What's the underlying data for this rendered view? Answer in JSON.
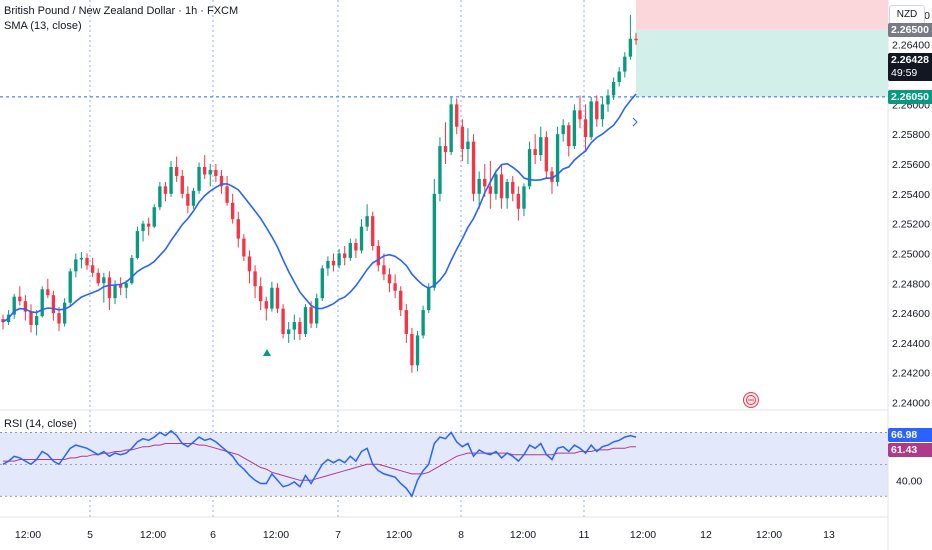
{
  "legend": {
    "title": "British Pound / New Zealand Dollar · 1h · FXCM",
    "sma": "SMA (13, close)",
    "rsi": "RSI (14, close)"
  },
  "currency": "NZD",
  "badges": {
    "target_price": "2.26500",
    "last_price": "2.26428",
    "countdown": "49:59",
    "entry_price": "2.26050",
    "rsi_value": "66.98",
    "rsi_ma_value": "61.43"
  },
  "colors": {
    "up": "#089981",
    "down": "#f23645",
    "sma": "#2962ff",
    "rsi": "#2962ff",
    "rsi_ma": "#b03a89",
    "rsi_band": "#e3e8fb",
    "target_zone": "#fbd7db",
    "stop_zone": "#d3efe9"
  },
  "chart_data": [
    {
      "type": "candlestick",
      "title": "British Pound / New Zealand Dollar · 1h · FXCM",
      "y_axis_ticks": [
        "2.26600",
        "2.26400",
        "2.26200",
        "2.26000",
        "2.25800",
        "2.25600",
        "2.25400",
        "2.25200",
        "2.25000",
        "2.24800",
        "2.24600",
        "2.24400",
        "2.24200",
        "2.24000"
      ],
      "ylim": [
        2.2395,
        2.267
      ],
      "x_axis_ticks": [
        "12:00",
        "5",
        "12:00",
        "6",
        "12:00",
        "7",
        "12:00",
        "8",
        "12:00",
        "11",
        "12:00",
        "12",
        "12:00",
        "13"
      ],
      "sma_period": 13,
      "ohlc": [
        [
          2.2456,
          2.2459,
          2.2449,
          2.2454
        ],
        [
          2.2454,
          2.2462,
          2.2452,
          2.2459
        ],
        [
          2.2459,
          2.2473,
          2.2456,
          2.2471
        ],
        [
          2.2471,
          2.2478,
          2.2465,
          2.2468
        ],
        [
          2.2468,
          2.2472,
          2.2455,
          2.2461
        ],
        [
          2.2461,
          2.2466,
          2.2447,
          2.2452
        ],
        [
          2.2452,
          2.2462,
          2.2445,
          2.2458
        ],
        [
          2.2458,
          2.2478,
          2.2457,
          2.2476
        ],
        [
          2.2476,
          2.2483,
          2.247,
          2.2472
        ],
        [
          2.2472,
          2.2475,
          2.2455,
          2.246
        ],
        [
          2.246,
          2.2464,
          2.2448,
          2.2453
        ],
        [
          2.2453,
          2.247,
          2.2451,
          2.2467
        ],
        [
          2.2467,
          2.249,
          2.2465,
          2.2488
        ],
        [
          2.2488,
          2.25,
          2.2484,
          2.2496
        ],
        [
          2.2496,
          2.2501,
          2.249,
          2.2497
        ],
        [
          2.2497,
          2.25,
          2.2489,
          2.2492
        ],
        [
          2.2492,
          2.2497,
          2.2484,
          2.2487
        ],
        [
          2.2487,
          2.249,
          2.2478,
          2.248
        ],
        [
          2.248,
          2.2487,
          2.2467,
          2.2484
        ],
        [
          2.2484,
          2.2488,
          2.2462,
          2.247
        ],
        [
          2.247,
          2.2482,
          2.2466,
          2.2479
        ],
        [
          2.2479,
          2.2484,
          2.2472,
          2.2477
        ],
        [
          2.2477,
          2.2482,
          2.247,
          2.248
        ],
        [
          2.248,
          2.2499,
          2.2479,
          2.2497
        ],
        [
          2.2497,
          2.2518,
          2.2496,
          2.2515
        ],
        [
          2.2515,
          2.2522,
          2.2508,
          2.252
        ],
        [
          2.252,
          2.2524,
          2.2512,
          2.2518
        ],
        [
          2.2518,
          2.2533,
          2.2517,
          2.2531
        ],
        [
          2.2531,
          2.2548,
          2.2529,
          2.2545
        ],
        [
          2.2545,
          2.2548,
          2.2535,
          2.254
        ],
        [
          2.254,
          2.2562,
          2.2538,
          2.2558
        ],
        [
          2.2558,
          2.2565,
          2.2548,
          2.2552
        ],
        [
          2.2552,
          2.2556,
          2.2537,
          2.254
        ],
        [
          2.254,
          2.2545,
          2.2527,
          2.2532
        ],
        [
          2.2532,
          2.2544,
          2.253,
          2.2542
        ],
        [
          2.2542,
          2.2561,
          2.254,
          2.2558
        ],
        [
          2.2558,
          2.2566,
          2.255,
          2.2553
        ],
        [
          2.2553,
          2.256,
          2.2545,
          2.2556
        ],
        [
          2.2556,
          2.256,
          2.2548,
          2.2552
        ],
        [
          2.2552,
          2.2556,
          2.254,
          2.2545
        ],
        [
          2.2545,
          2.2552,
          2.2532,
          2.2534
        ],
        [
          2.2534,
          2.254,
          2.252,
          2.2523
        ],
        [
          2.2523,
          2.2528,
          2.2504,
          2.251
        ],
        [
          2.251,
          2.2513,
          2.2495,
          2.2498
        ],
        [
          2.2498,
          2.2502,
          2.248,
          2.2488
        ],
        [
          2.2488,
          2.2492,
          2.247,
          2.2478
        ],
        [
          2.2478,
          2.2484,
          2.2462,
          2.2468
        ],
        [
          2.2468,
          2.2471,
          2.2455,
          2.2463
        ],
        [
          2.2463,
          2.2481,
          2.2461,
          2.2477
        ],
        [
          2.2477,
          2.248,
          2.246,
          2.2463
        ],
        [
          2.2463,
          2.2466,
          2.2443,
          2.2446
        ],
        [
          2.2446,
          2.2454,
          2.244,
          2.2449
        ],
        [
          2.2449,
          2.2459,
          2.2442,
          2.2454
        ],
        [
          2.2454,
          2.2457,
          2.2442,
          2.2446
        ],
        [
          2.2446,
          2.2466,
          2.2444,
          2.2464
        ],
        [
          2.2464,
          2.2468,
          2.245,
          2.2453
        ],
        [
          2.2453,
          2.2473,
          2.245,
          2.247
        ],
        [
          2.247,
          2.2492,
          2.2468,
          2.249
        ],
        [
          2.249,
          2.2498,
          2.2485,
          2.2495
        ],
        [
          2.2495,
          2.25,
          2.2488,
          2.2492
        ],
        [
          2.2492,
          2.2503,
          2.249,
          2.25
        ],
        [
          2.25,
          2.2505,
          2.2492,
          2.2497
        ],
        [
          2.2497,
          2.251,
          2.2495,
          2.2507
        ],
        [
          2.2507,
          2.251,
          2.2497,
          2.2502
        ],
        [
          2.2502,
          2.2523,
          2.25,
          2.2518
        ],
        [
          2.2518,
          2.2533,
          2.2515,
          2.2525
        ],
        [
          2.2525,
          2.2528,
          2.2502,
          2.2505
        ],
        [
          2.2505,
          2.2509,
          2.2488,
          2.2492
        ],
        [
          2.2492,
          2.25,
          2.2482,
          2.2486
        ],
        [
          2.2486,
          2.249,
          2.2474,
          2.248
        ],
        [
          2.248,
          2.2486,
          2.247,
          2.2475
        ],
        [
          2.2475,
          2.2478,
          2.2458,
          2.2462
        ],
        [
          2.2462,
          2.2466,
          2.244,
          2.2446
        ],
        [
          2.2446,
          2.245,
          2.242,
          2.2425
        ],
        [
          2.2425,
          2.2448,
          2.2421,
          2.2445
        ],
        [
          2.2445,
          2.2465,
          2.2443,
          2.2462
        ],
        [
          2.2462,
          2.248,
          2.246,
          2.2477
        ],
        [
          2.2477,
          2.255,
          2.2475,
          2.254
        ],
        [
          2.254,
          2.2578,
          2.2535,
          2.2572
        ],
        [
          2.2572,
          2.2588,
          2.256,
          2.2568
        ],
        [
          2.2568,
          2.2605,
          2.2566,
          2.26
        ],
        [
          2.26,
          2.2604,
          2.258,
          2.2585
        ],
        [
          2.2585,
          2.259,
          2.2562,
          2.257
        ],
        [
          2.257,
          2.2584,
          2.256,
          2.2575
        ],
        [
          2.2575,
          2.258,
          2.2535,
          2.254
        ],
        [
          2.254,
          2.2555,
          2.253,
          2.255
        ],
        [
          2.255,
          2.256,
          2.2538,
          2.2545
        ],
        [
          2.2545,
          2.2562,
          2.253,
          2.254
        ],
        [
          2.254,
          2.2556,
          2.2536,
          2.2553
        ],
        [
          2.2553,
          2.256,
          2.253,
          2.2537
        ],
        [
          2.2537,
          2.255,
          2.253,
          2.2548
        ],
        [
          2.2548,
          2.2552,
          2.2535,
          2.254
        ],
        [
          2.254,
          2.2545,
          2.2522,
          2.253
        ],
        [
          2.253,
          2.2547,
          2.2525,
          2.2545
        ],
        [
          2.2545,
          2.2575,
          2.2543,
          2.257
        ],
        [
          2.257,
          2.258,
          2.256,
          2.2566
        ],
        [
          2.2566,
          2.2585,
          2.2562,
          2.2578
        ],
        [
          2.2578,
          2.2582,
          2.255,
          2.2555
        ],
        [
          2.2555,
          2.2558,
          2.254,
          2.2548
        ],
        [
          2.2548,
          2.2585,
          2.2545,
          2.258
        ],
        [
          2.258,
          2.259,
          2.2575,
          2.2586
        ],
        [
          2.2586,
          2.2588,
          2.2565,
          2.2572
        ],
        [
          2.2572,
          2.26,
          2.257,
          2.2596
        ],
        [
          2.2596,
          2.2606,
          2.2584,
          2.259
        ],
        [
          2.259,
          2.26,
          2.2568,
          2.2578
        ],
        [
          2.2578,
          2.2605,
          2.2576,
          2.2602
        ],
        [
          2.2602,
          2.2606,
          2.2585,
          2.259
        ],
        [
          2.259,
          2.2605,
          2.2585,
          2.26
        ],
        [
          2.26,
          2.261,
          2.2595,
          2.2606
        ],
        [
          2.2606,
          2.2618,
          2.2603,
          2.2615
        ],
        [
          2.2615,
          2.2625,
          2.2612,
          2.2622
        ],
        [
          2.2622,
          2.2635,
          2.2618,
          2.2632
        ],
        [
          2.2632,
          2.266,
          2.263,
          2.2644
        ],
        [
          2.2644,
          2.2648,
          2.264,
          2.2643
        ]
      ],
      "position": {
        "entry": 2.2605,
        "target": 2.265,
        "stop_top": 2.267
      }
    },
    {
      "type": "line",
      "title": "RSI (14, close)",
      "ylim": [
        17,
        84
      ],
      "bands": [
        30,
        70
      ],
      "y_axis_ticks": [
        "40.00"
      ],
      "series": [
        {
          "name": "RSI",
          "values": [
            50,
            52,
            55,
            54,
            52,
            50,
            53,
            58,
            56,
            52,
            50,
            55,
            60,
            62,
            61,
            60,
            58,
            56,
            58,
            55,
            57,
            56,
            57,
            60,
            64,
            66,
            65,
            67,
            70,
            68,
            71,
            68,
            63,
            61,
            64,
            67,
            65,
            66,
            64,
            61,
            58,
            55,
            50,
            47,
            43,
            40,
            38,
            38,
            44,
            40,
            36,
            37,
            39,
            36,
            43,
            38,
            44,
            50,
            53,
            51,
            53,
            51,
            55,
            52,
            58,
            60,
            50,
            46,
            44,
            43,
            42,
            38,
            35,
            30,
            40,
            46,
            50,
            63,
            67,
            66,
            70,
            64,
            61,
            63,
            55,
            59,
            57,
            56,
            58,
            54,
            57,
            55,
            52,
            56,
            62,
            60,
            63,
            56,
            53,
            60,
            61,
            58,
            62,
            60,
            57,
            62,
            58,
            61,
            62,
            64,
            65,
            67,
            68,
            67
          ]
        },
        {
          "name": "RSI MA",
          "values": [
            52,
            52,
            52,
            53,
            53,
            53,
            53,
            53,
            53,
            53,
            53,
            53,
            54,
            54,
            55,
            55,
            56,
            56,
            57,
            57,
            58,
            58,
            59,
            59,
            60,
            61,
            61,
            62,
            62,
            63,
            63,
            63,
            63,
            63,
            63,
            62,
            62,
            61,
            60,
            59,
            58,
            57,
            56,
            54,
            52,
            50,
            48,
            47,
            45,
            44,
            43,
            42,
            41,
            40,
            40,
            40,
            41,
            42,
            43,
            44,
            45,
            46,
            47,
            48,
            49,
            50,
            50,
            50,
            49,
            48,
            47,
            46,
            45,
            44,
            44,
            44,
            45,
            47,
            49,
            51,
            53,
            55,
            56,
            57,
            57,
            57,
            57,
            57,
            57,
            57,
            57,
            56,
            56,
            56,
            56,
            56,
            56,
            56,
            56,
            57,
            57,
            57,
            57,
            58,
            58,
            58,
            59,
            59,
            59,
            60,
            60,
            60,
            61,
            61
          ]
        }
      ]
    }
  ]
}
